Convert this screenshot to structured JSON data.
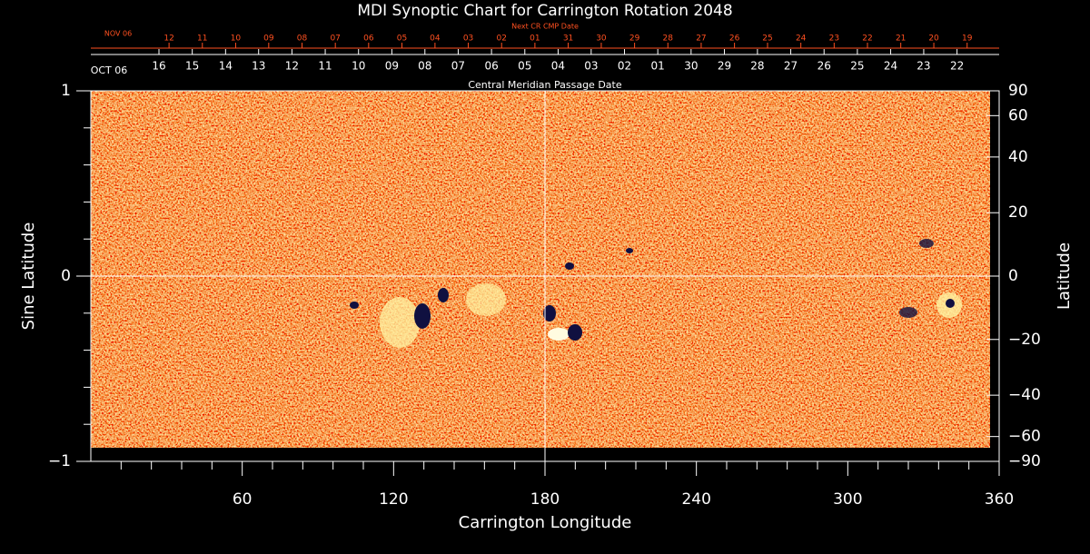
{
  "chart_data": {
    "type": "image",
    "title": "MDI Synoptic Chart for Carrington Rotation 2048",
    "xlabel": "Carrington Longitude",
    "ylabel": "Sine Latitude",
    "y2label": "Latitude",
    "xlim": [
      0,
      360
    ],
    "xticks": [
      60,
      120,
      180,
      240,
      300,
      360
    ],
    "xminorticks": [
      12,
      24,
      36,
      48,
      72,
      84,
      96,
      108,
      132,
      144,
      156,
      168,
      192,
      204,
      216,
      228,
      252,
      264,
      276,
      288,
      312,
      324,
      336,
      348
    ],
    "ylim": [
      -1,
      1
    ],
    "yticks": [
      {
        "value": -1,
        "label": "−1"
      },
      0,
      1
    ],
    "yminorticks": [
      -0.8,
      -0.6,
      -0.4,
      -0.2,
      0.2,
      0.4,
      0.6,
      0.8
    ],
    "y2lim": [
      -90,
      90
    ],
    "y2scale": "sine",
    "y2ticks": [
      90,
      60,
      40,
      20,
      0,
      {
        "value": -20,
        "label": "−20"
      },
      {
        "value": -40,
        "label": "−40"
      },
      {
        "value": -60,
        "label": "−60"
      },
      {
        "value": -90,
        "label": "−90"
      }
    ],
    "crosshair": {
      "x": 180,
      "y": 0
    },
    "top_axes": [
      {
        "label": "Central Meridian Passage Date",
        "start_label": "OCT 06",
        "color": "#ffffff",
        "ticks": [
          {
            "value": 27.0,
            "label": "16"
          },
          {
            "value": 40.2,
            "label": "15"
          },
          {
            "value": 53.4,
            "label": "14"
          },
          {
            "value": 66.5,
            "label": "13"
          },
          {
            "value": 79.7,
            "label": "12"
          },
          {
            "value": 92.9,
            "label": "11"
          },
          {
            "value": 106.1,
            "label": "10"
          },
          {
            "value": 119.3,
            "label": "09"
          },
          {
            "value": 132.4,
            "label": "08"
          },
          {
            "value": 145.6,
            "label": "07"
          },
          {
            "value": 158.8,
            "label": "06"
          },
          {
            "value": 172.0,
            "label": "05"
          },
          {
            "value": 185.2,
            "label": "04"
          },
          {
            "value": 198.3,
            "label": "03"
          },
          {
            "value": 211.5,
            "label": "02"
          },
          {
            "value": 224.7,
            "label": "01"
          },
          {
            "value": 237.9,
            "label": "30"
          },
          {
            "value": 251.1,
            "label": "29"
          },
          {
            "value": 264.2,
            "label": "28"
          },
          {
            "value": 277.4,
            "label": "27"
          },
          {
            "value": 290.6,
            "label": "26"
          },
          {
            "value": 303.8,
            "label": "25"
          },
          {
            "value": 317.0,
            "label": "24"
          },
          {
            "value": 330.1,
            "label": "23"
          },
          {
            "value": 343.3,
            "label": "22"
          }
        ]
      },
      {
        "label": "Next CR CMP Date",
        "start_label": "NOV 06",
        "color": "#ff5020",
        "ticks": [
          {
            "value": 31.0,
            "label": "12"
          },
          {
            "value": 44.2,
            "label": "11"
          },
          {
            "value": 57.4,
            "label": "10"
          },
          {
            "value": 70.5,
            "label": "09"
          },
          {
            "value": 83.7,
            "label": "08"
          },
          {
            "value": 96.9,
            "label": "07"
          },
          {
            "value": 110.1,
            "label": "06"
          },
          {
            "value": 123.3,
            "label": "05"
          },
          {
            "value": 136.4,
            "label": "04"
          },
          {
            "value": 149.6,
            "label": "03"
          },
          {
            "value": 162.8,
            "label": "02"
          },
          {
            "value": 176.0,
            "label": "01"
          },
          {
            "value": 189.2,
            "label": "31"
          },
          {
            "value": 202.3,
            "label": "30"
          },
          {
            "value": 215.5,
            "label": "29"
          },
          {
            "value": 228.7,
            "label": "28"
          },
          {
            "value": 241.9,
            "label": "27"
          },
          {
            "value": 255.1,
            "label": "26"
          },
          {
            "value": 268.2,
            "label": "25"
          },
          {
            "value": 281.4,
            "label": "24"
          },
          {
            "value": 294.6,
            "label": "23"
          },
          {
            "value": 307.8,
            "label": "22"
          },
          {
            "value": 321.0,
            "label": "21"
          },
          {
            "value": 334.1,
            "label": "20"
          },
          {
            "value": 347.3,
            "label": "19"
          }
        ]
      }
    ]
  }
}
